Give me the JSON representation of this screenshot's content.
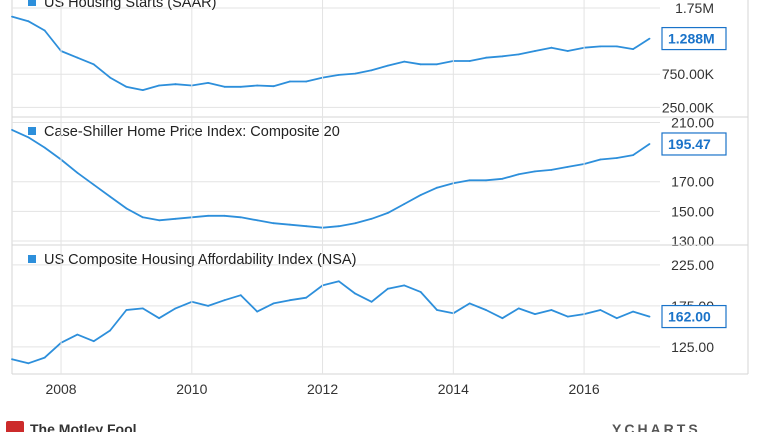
{
  "colors": {
    "line": "#2d8fdb",
    "grid": "#e3e3e3",
    "axis": "#d6d6d6",
    "tag": "#1a73c9",
    "legend": "#2d8fdb"
  },
  "footer": {
    "left": "The Motley Fool",
    "right": "YCHARTS"
  },
  "chart_data": [
    {
      "type": "line",
      "title": "US Housing Starts (SAAR)",
      "y_ticks": [
        "250.00K",
        "750.00K",
        "1.75M"
      ],
      "y_tick_values": [
        250,
        750,
        1750
      ],
      "ylim": [
        120,
        1870
      ],
      "last_value_label": "1.288M",
      "x_range": [
        2007.25,
        2017.1
      ],
      "series": [
        {
          "x": [
            2007.25,
            2007.5,
            2007.75,
            2008.0,
            2008.25,
            2008.5,
            2008.75,
            2009.0,
            2009.25,
            2009.5,
            2009.75,
            2010.0,
            2010.25,
            2010.5,
            2010.75,
            2011.0,
            2011.25,
            2011.5,
            2011.75,
            2012.0,
            2012.25,
            2012.5,
            2012.75,
            2013.0,
            2013.25,
            2013.5,
            2013.75,
            2014.0,
            2014.25,
            2014.5,
            2014.75,
            2015.0,
            2015.25,
            2015.5,
            2015.75,
            2016.0,
            2016.25,
            2016.5,
            2016.75,
            2017.0
          ],
          "y": [
            1620,
            1550,
            1410,
            1100,
            1000,
            900,
            700,
            560,
            510,
            580,
            600,
            580,
            620,
            560,
            560,
            580,
            570,
            640,
            640,
            700,
            740,
            760,
            810,
            880,
            940,
            900,
            900,
            950,
            950,
            1000,
            1020,
            1050,
            1100,
            1150,
            1100,
            1150,
            1170,
            1170,
            1130,
            1288
          ]
        }
      ]
    },
    {
      "type": "line",
      "title": "Case-Shiller Home Price Index: Composite 20",
      "y_ticks": [
        "130.00",
        "150.00",
        "170.00",
        "210.00"
      ],
      "y_tick_values": [
        130,
        150,
        170,
        210
      ],
      "ylim": [
        128,
        213
      ],
      "last_value_label": "195.47",
      "x_range": [
        2007.25,
        2017.1
      ],
      "series": [
        {
          "x": [
            2007.25,
            2007.5,
            2007.75,
            2008.0,
            2008.25,
            2008.5,
            2008.75,
            2009.0,
            2009.25,
            2009.5,
            2009.75,
            2010.0,
            2010.25,
            2010.5,
            2010.75,
            2011.0,
            2011.25,
            2011.5,
            2011.75,
            2012.0,
            2012.25,
            2012.5,
            2012.75,
            2013.0,
            2013.25,
            2013.5,
            2013.75,
            2014.0,
            2014.25,
            2014.5,
            2014.75,
            2015.0,
            2015.25,
            2015.5,
            2015.75,
            2016.0,
            2016.25,
            2016.5,
            2016.75,
            2017.0
          ],
          "y": [
            205,
            200,
            193,
            185,
            176,
            168,
            160,
            152,
            146,
            144,
            145,
            146,
            147,
            147,
            146,
            144,
            142,
            141,
            140,
            139,
            140,
            142,
            145,
            149,
            155,
            161,
            166,
            169,
            171,
            171,
            172,
            175,
            177,
            178,
            180,
            182,
            185,
            186,
            188,
            195.47
          ]
        }
      ]
    },
    {
      "type": "line",
      "title": "US Composite Housing Affordability Index (NSA)",
      "y_ticks": [
        "125.00",
        "175.00",
        "225.00"
      ],
      "y_tick_values": [
        125,
        175,
        225
      ],
      "ylim": [
        92,
        248
      ],
      "last_value_label": "162.00",
      "x_range": [
        2007.25,
        2017.1
      ],
      "series": [
        {
          "x": [
            2007.25,
            2007.5,
            2007.75,
            2008.0,
            2008.25,
            2008.5,
            2008.75,
            2009.0,
            2009.25,
            2009.5,
            2009.75,
            2010.0,
            2010.25,
            2010.5,
            2010.75,
            2011.0,
            2011.25,
            2011.5,
            2011.75,
            2012.0,
            2012.25,
            2012.5,
            2012.75,
            2013.0,
            2013.25,
            2013.5,
            2013.75,
            2014.0,
            2014.25,
            2014.5,
            2014.75,
            2015.0,
            2015.25,
            2015.5,
            2015.75,
            2016.0,
            2016.25,
            2016.5,
            2016.75,
            2017.0
          ],
          "y": [
            110,
            105,
            112,
            130,
            140,
            132,
            145,
            170,
            172,
            160,
            172,
            180,
            175,
            182,
            188,
            168,
            178,
            182,
            185,
            200,
            205,
            190,
            180,
            196,
            200,
            192,
            170,
            166,
            178,
            170,
            160,
            172,
            165,
            170,
            162,
            165,
            170,
            160,
            168,
            162
          ]
        }
      ]
    }
  ],
  "x_axis": {
    "ticks": [
      "2008",
      "2010",
      "2012",
      "2014",
      "2016"
    ],
    "tick_values": [
      2008,
      2010,
      2012,
      2014,
      2016
    ]
  }
}
